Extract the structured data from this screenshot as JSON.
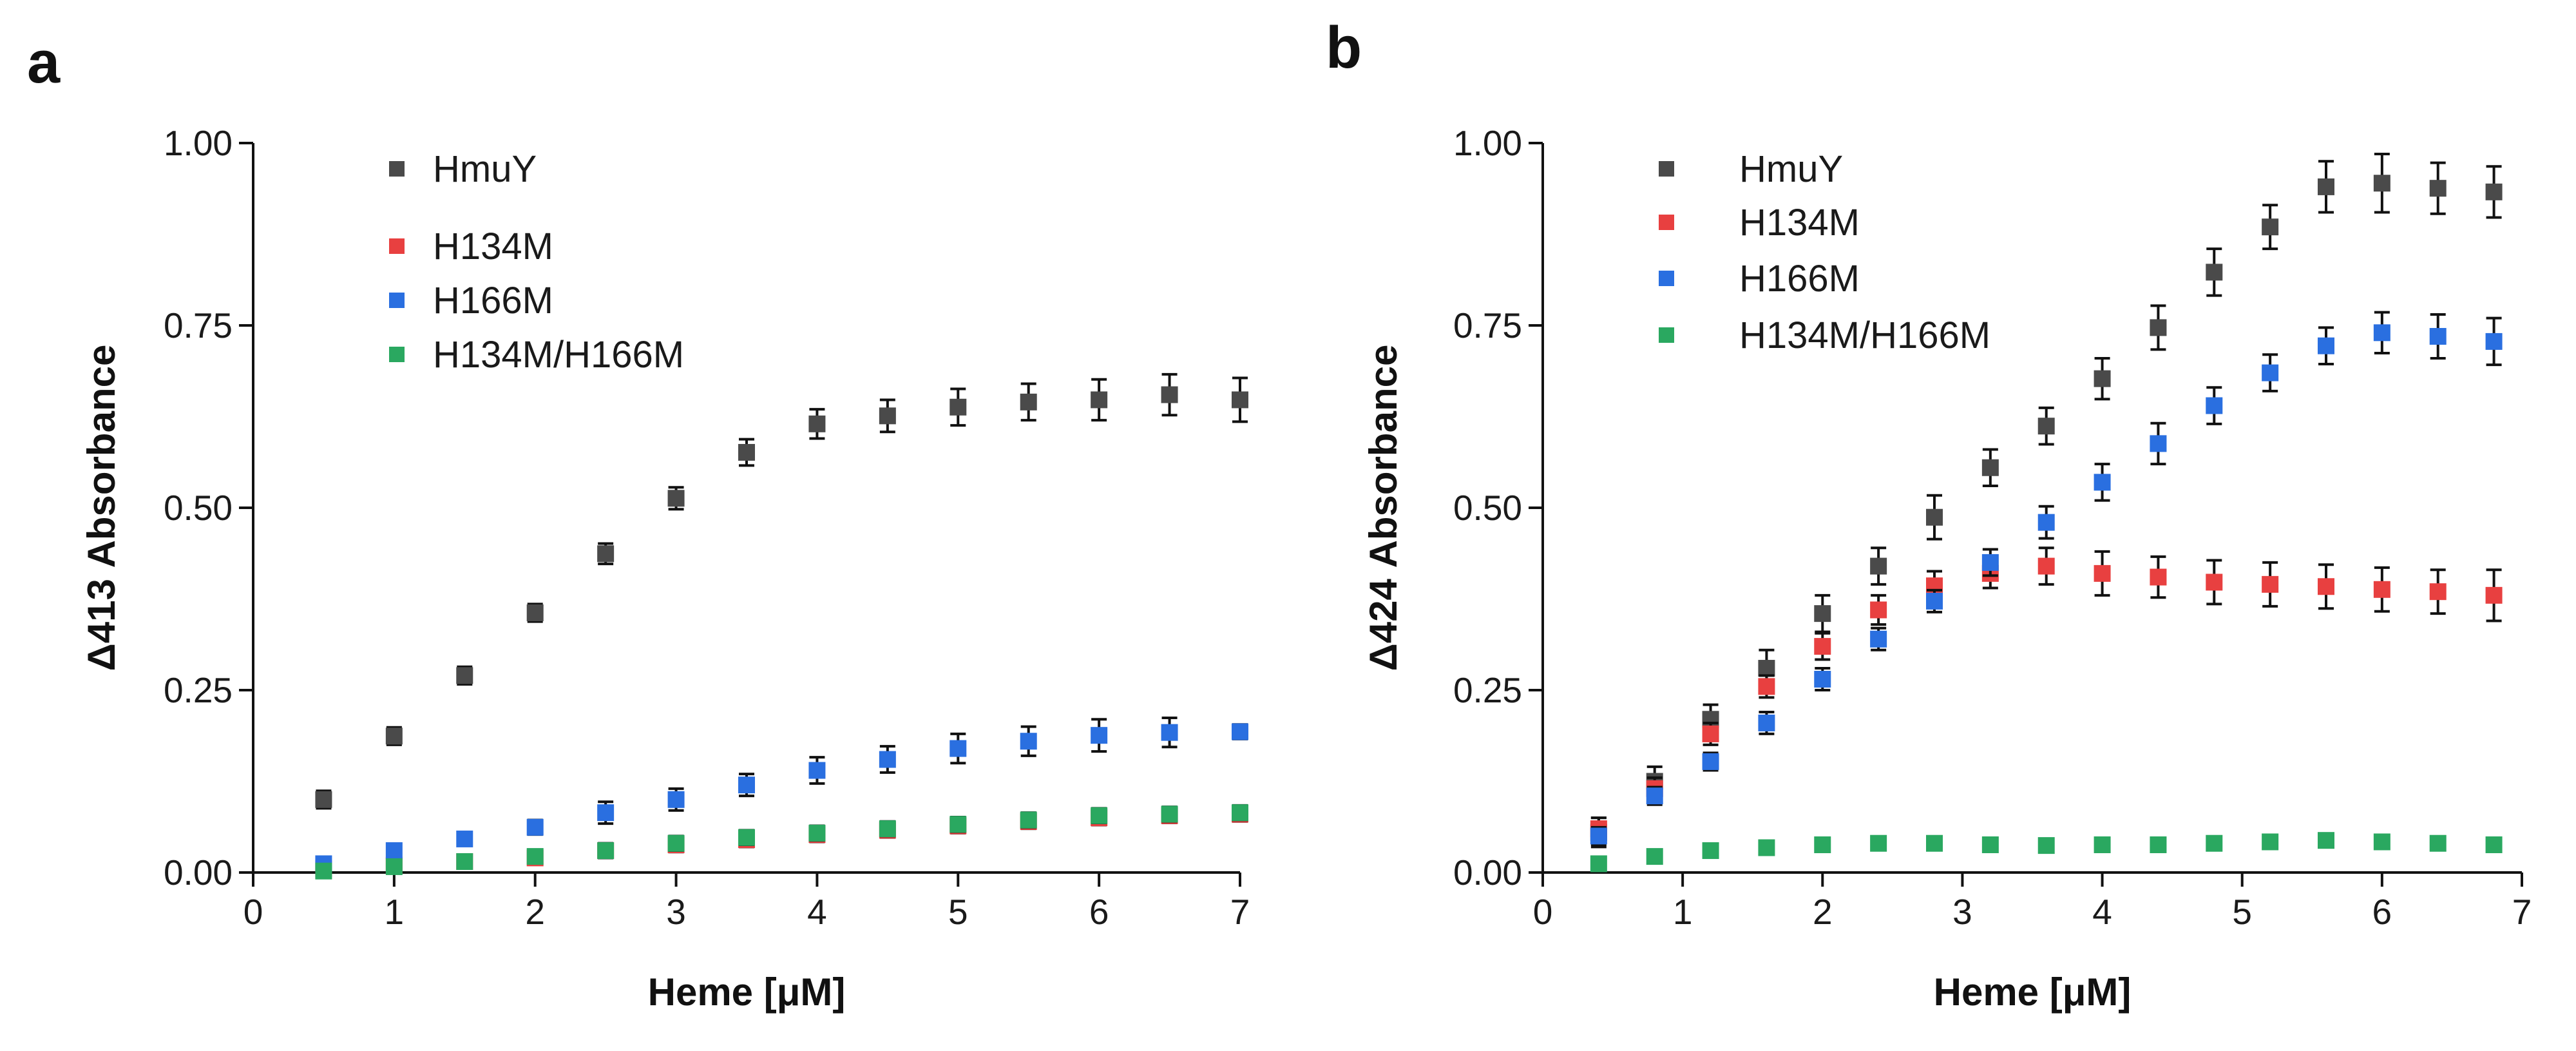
{
  "figure": {
    "panels": [
      "a",
      "b"
    ]
  },
  "chart_data": [
    {
      "panel_label": "a",
      "type": "scatter",
      "xlabel": "Heme [μM]",
      "ylabel": "Δ413 Absorbance",
      "xlim": [
        0,
        7
      ],
      "ylim": [
        0,
        1.0
      ],
      "xticks": [
        0,
        1,
        2,
        3,
        4,
        5,
        6,
        7
      ],
      "xtick_labels": [
        "0",
        "1",
        "2",
        "3",
        "4",
        "5",
        "6",
        "7"
      ],
      "yticks": [
        0,
        0.25,
        0.5,
        0.75,
        1.0
      ],
      "ytick_labels": [
        "0.00",
        "0.25",
        "0.50",
        "0.75",
        "1.00"
      ],
      "legend_position": "top-left",
      "x": [
        0.5,
        1.0,
        1.5,
        2.0,
        2.5,
        3.0,
        3.5,
        4.0,
        4.5,
        5.0,
        5.5,
        6.0,
        6.5,
        7.0
      ],
      "series": [
        {
          "name": "HmuY",
          "color": "#4a4a4a",
          "values": [
            0.1,
            0.187,
            0.27,
            0.356,
            0.437,
            0.513,
            0.576,
            0.615,
            0.626,
            0.638,
            0.645,
            0.648,
            0.655,
            0.648
          ],
          "errors": [
            0.012,
            0.012,
            0.012,
            0.012,
            0.014,
            0.015,
            0.018,
            0.02,
            0.022,
            0.025,
            0.025,
            0.028,
            0.028,
            0.03
          ]
        },
        {
          "name": "H134M",
          "color": "#e84040",
          "values": [
            0.005,
            0.01,
            0.015,
            0.02,
            0.03,
            0.038,
            0.045,
            0.052,
            0.058,
            0.064,
            0.07,
            0.075,
            0.078,
            0.08
          ],
          "errors": [
            0.008,
            0.008,
            0.008,
            0.008,
            0.01,
            0.01,
            0.01,
            0.01,
            0.01,
            0.01,
            0.01,
            0.01,
            0.01,
            0.01
          ]
        },
        {
          "name": "H166M",
          "color": "#2a6fe0",
          "values": [
            0.012,
            0.03,
            0.046,
            0.062,
            0.082,
            0.1,
            0.12,
            0.14,
            0.155,
            0.17,
            0.18,
            0.188,
            0.192,
            0.193
          ],
          "errors": [
            0.008,
            0.008,
            0.008,
            0.01,
            0.015,
            0.015,
            0.015,
            0.018,
            0.018,
            0.02,
            0.02,
            0.022,
            0.02,
            0.01
          ]
        },
        {
          "name": "H134M/H166M",
          "color": "#2aa860",
          "values": [
            0.002,
            0.008,
            0.015,
            0.022,
            0.03,
            0.04,
            0.048,
            0.054,
            0.06,
            0.066,
            0.072,
            0.078,
            0.08,
            0.082
          ],
          "errors": [
            0.008,
            0.008,
            0.008,
            0.008,
            0.01,
            0.01,
            0.01,
            0.01,
            0.01,
            0.01,
            0.01,
            0.01,
            0.01,
            0.01
          ]
        }
      ]
    },
    {
      "panel_label": "b",
      "type": "scatter",
      "xlabel": "Heme [μM]",
      "ylabel": "Δ424 Absorbance",
      "xlim": [
        0,
        7
      ],
      "ylim": [
        0,
        1.0
      ],
      "xticks": [
        0,
        1,
        2,
        3,
        4,
        5,
        6,
        7
      ],
      "xtick_labels": [
        "0",
        "1",
        "2",
        "3",
        "4",
        "5",
        "6",
        "7"
      ],
      "yticks": [
        0,
        0.25,
        0.5,
        0.75,
        1.0
      ],
      "ytick_labels": [
        "0.00",
        "0.25",
        "0.50",
        "0.75",
        "1.00"
      ],
      "legend_position": "top-left",
      "x": [
        0.4,
        0.8,
        1.2,
        1.6,
        2.0,
        2.4,
        2.8,
        3.2,
        3.6,
        4.0,
        4.4,
        4.8,
        5.2,
        5.6,
        6.0,
        6.4,
        6.8
      ],
      "series": [
        {
          "name": "HmuY",
          "color": "#4a4a4a",
          "values": [
            0.055,
            0.125,
            0.21,
            0.28,
            0.355,
            0.42,
            0.487,
            0.555,
            0.612,
            0.677,
            0.747,
            0.823,
            0.885,
            0.94,
            0.945,
            0.938,
            0.933
          ],
          "errors": [
            0.02,
            0.02,
            0.02,
            0.025,
            0.025,
            0.025,
            0.03,
            0.025,
            0.025,
            0.028,
            0.03,
            0.032,
            0.03,
            0.035,
            0.04,
            0.035,
            0.035
          ]
        },
        {
          "name": "H134M",
          "color": "#e84040",
          "values": [
            0.06,
            0.115,
            0.19,
            0.255,
            0.31,
            0.36,
            0.393,
            0.41,
            0.42,
            0.41,
            0.405,
            0.398,
            0.395,
            0.392,
            0.388,
            0.385,
            0.38
          ],
          "errors": [
            0.015,
            0.015,
            0.015,
            0.015,
            0.018,
            0.02,
            0.02,
            0.02,
            0.025,
            0.03,
            0.028,
            0.03,
            0.03,
            0.03,
            0.03,
            0.03,
            0.035
          ]
        },
        {
          "name": "H166M",
          "color": "#2a6fe0",
          "values": [
            0.05,
            0.105,
            0.152,
            0.205,
            0.265,
            0.32,
            0.372,
            0.425,
            0.48,
            0.535,
            0.588,
            0.64,
            0.685,
            0.722,
            0.74,
            0.735,
            0.728
          ],
          "errors": [
            0.012,
            0.012,
            0.012,
            0.015,
            0.015,
            0.015,
            0.015,
            0.018,
            0.022,
            0.025,
            0.028,
            0.025,
            0.025,
            0.025,
            0.028,
            0.03,
            0.032
          ]
        },
        {
          "name": "H134M/H166M",
          "color": "#2aa860",
          "values": [
            0.012,
            0.022,
            0.03,
            0.034,
            0.038,
            0.04,
            0.04,
            0.038,
            0.037,
            0.038,
            0.038,
            0.04,
            0.042,
            0.044,
            0.042,
            0.04,
            0.038
          ],
          "errors": [
            0.006,
            0.006,
            0.006,
            0.006,
            0.006,
            0.006,
            0.006,
            0.006,
            0.006,
            0.006,
            0.006,
            0.006,
            0.006,
            0.006,
            0.006,
            0.006,
            0.006
          ]
        }
      ]
    }
  ]
}
